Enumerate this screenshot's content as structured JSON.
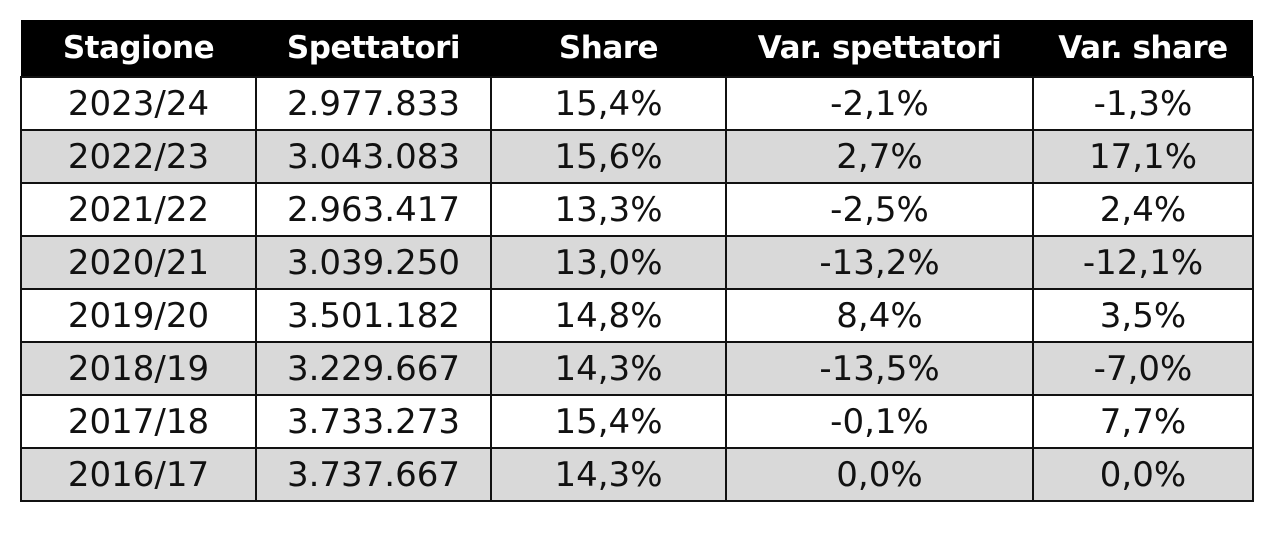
{
  "table": {
    "header": [
      "Stagione",
      "Spettatori",
      "Share",
      "Var. spettatori",
      "Var. share"
    ],
    "rows": [
      [
        "2023/24",
        "2.977.833",
        "15,4%",
        "-2,1%",
        "-1,3%"
      ],
      [
        "2022/23",
        "3.043.083",
        "15,6%",
        "2,7%",
        "17,1%"
      ],
      [
        "2021/22",
        "2.963.417",
        "13,3%",
        "-2,5%",
        "2,4%"
      ],
      [
        "2020/21",
        "3.039.250",
        "13,0%",
        "-13,2%",
        "-12,1%"
      ],
      [
        "2019/20",
        "3.501.182",
        "14,8%",
        "8,4%",
        "3,5%"
      ],
      [
        "2018/19",
        "3.229.667",
        "14,3%",
        "-13,5%",
        "-7,0%"
      ],
      [
        "2017/18",
        "3.733.273",
        "15,4%",
        "-0,1%",
        "7,7%"
      ],
      [
        "2016/17",
        "3.737.667",
        "14,3%",
        "0,0%",
        "0,0%"
      ]
    ]
  }
}
